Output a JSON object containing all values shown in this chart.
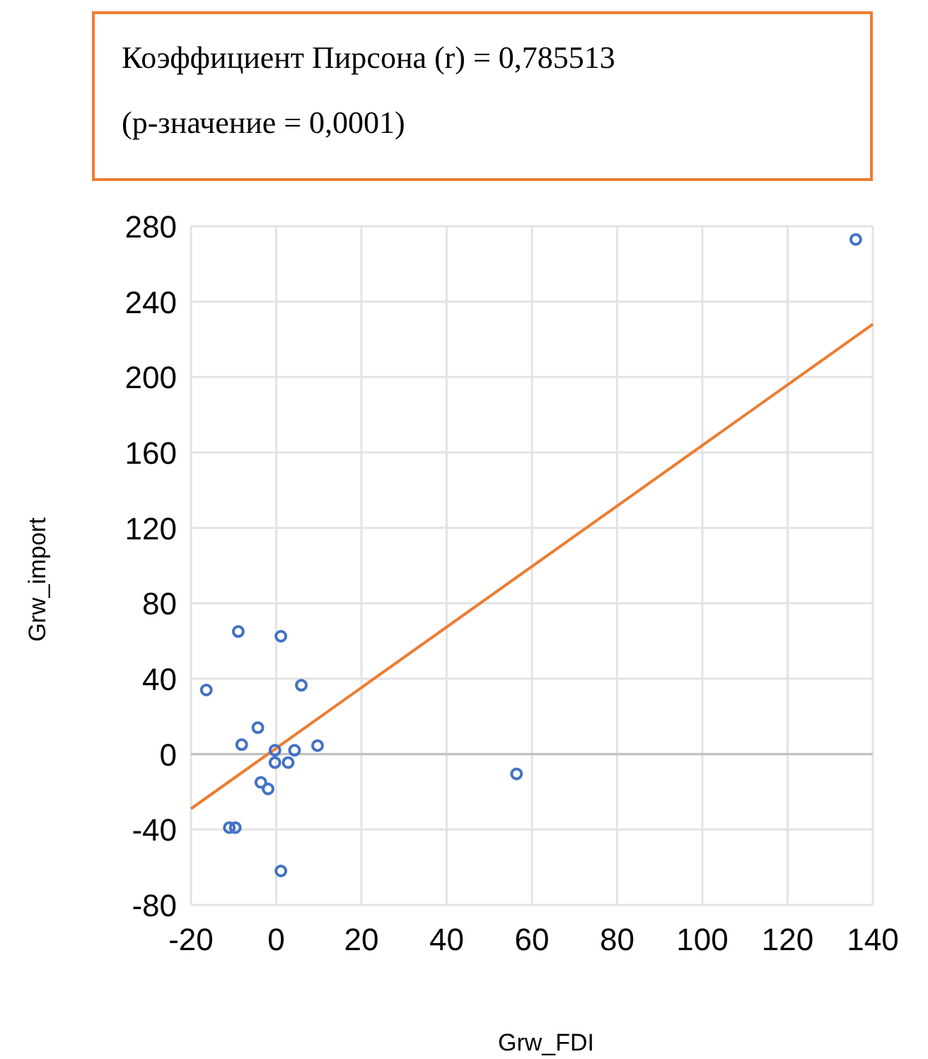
{
  "chart_data": {
    "type": "scatter",
    "xlabel": "Grw_FDI",
    "ylabel": "Grw_import",
    "annotations": [
      "Коэффициент Пирсона (r)  = 0,785513",
      "(р-значение = 0,0001)"
    ],
    "xlim": [
      -20,
      140
    ],
    "xticks": [
      -20,
      0,
      20,
      40,
      60,
      80,
      100,
      120,
      140
    ],
    "ylim": [
      -80,
      280
    ],
    "yticks": [
      -80,
      -40,
      0,
      40,
      80,
      120,
      160,
      200,
      240,
      280
    ],
    "grid": true,
    "series": [
      {
        "color": "#4472c4",
        "marker": "circle",
        "x": [
          -8.9,
          1.1,
          -16.4,
          5.9,
          -4.3,
          -8.1,
          -0.3,
          4.3,
          9.7,
          -0.3,
          2.8,
          -3.6,
          -1.9,
          -11,
          -9.6,
          1.1,
          56.4,
          136
        ],
        "values": [
          65,
          62.5,
          34,
          36.5,
          14,
          5,
          2,
          2,
          4.5,
          -4.5,
          -4.5,
          -15,
          -18.5,
          -39,
          -39,
          -62,
          -10.5,
          273
        ]
      },
      {
        "type": "line",
        "color": "#ed7d31",
        "marker": "none",
        "line_style": "solid",
        "x": [
          -20,
          140
        ],
        "values": [
          -29,
          228
        ]
      }
    ]
  }
}
